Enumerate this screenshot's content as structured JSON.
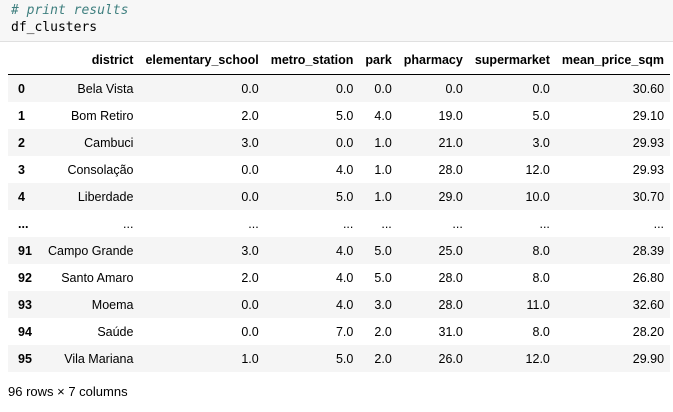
{
  "code": {
    "comment": "# print results",
    "expr": "df_clusters"
  },
  "table": {
    "columns": [
      "district",
      "elementary_school",
      "metro_station",
      "park",
      "pharmacy",
      "supermarket",
      "mean_price_sqm"
    ],
    "rows": [
      {
        "index": "0",
        "cells": [
          "Bela Vista",
          "0.0",
          "0.0",
          "0.0",
          "0.0",
          "0.0",
          "30.60"
        ]
      },
      {
        "index": "1",
        "cells": [
          "Bom Retiro",
          "2.0",
          "5.0",
          "4.0",
          "19.0",
          "5.0",
          "29.10"
        ]
      },
      {
        "index": "2",
        "cells": [
          "Cambuci",
          "3.0",
          "0.0",
          "1.0",
          "21.0",
          "3.0",
          "29.93"
        ]
      },
      {
        "index": "3",
        "cells": [
          "Consolação",
          "0.0",
          "4.0",
          "1.0",
          "28.0",
          "12.0",
          "29.93"
        ]
      },
      {
        "index": "4",
        "cells": [
          "Liberdade",
          "0.0",
          "5.0",
          "1.0",
          "29.0",
          "10.0",
          "30.70"
        ]
      },
      {
        "index": "...",
        "cells": [
          "...",
          "...",
          "...",
          "...",
          "...",
          "...",
          "..."
        ]
      },
      {
        "index": "91",
        "cells": [
          "Campo Grande",
          "3.0",
          "4.0",
          "5.0",
          "25.0",
          "8.0",
          "28.39"
        ]
      },
      {
        "index": "92",
        "cells": [
          "Santo Amaro",
          "2.0",
          "4.0",
          "5.0",
          "28.0",
          "8.0",
          "26.80"
        ]
      },
      {
        "index": "93",
        "cells": [
          "Moema",
          "0.0",
          "4.0",
          "3.0",
          "28.0",
          "11.0",
          "32.60"
        ]
      },
      {
        "index": "94",
        "cells": [
          "Saúde",
          "0.0",
          "7.0",
          "2.0",
          "31.0",
          "8.0",
          "28.20"
        ]
      },
      {
        "index": "95",
        "cells": [
          "Vila Mariana",
          "1.0",
          "5.0",
          "2.0",
          "26.0",
          "12.0",
          "29.90"
        ]
      }
    ]
  },
  "footer": "96 rows × 7 columns"
}
